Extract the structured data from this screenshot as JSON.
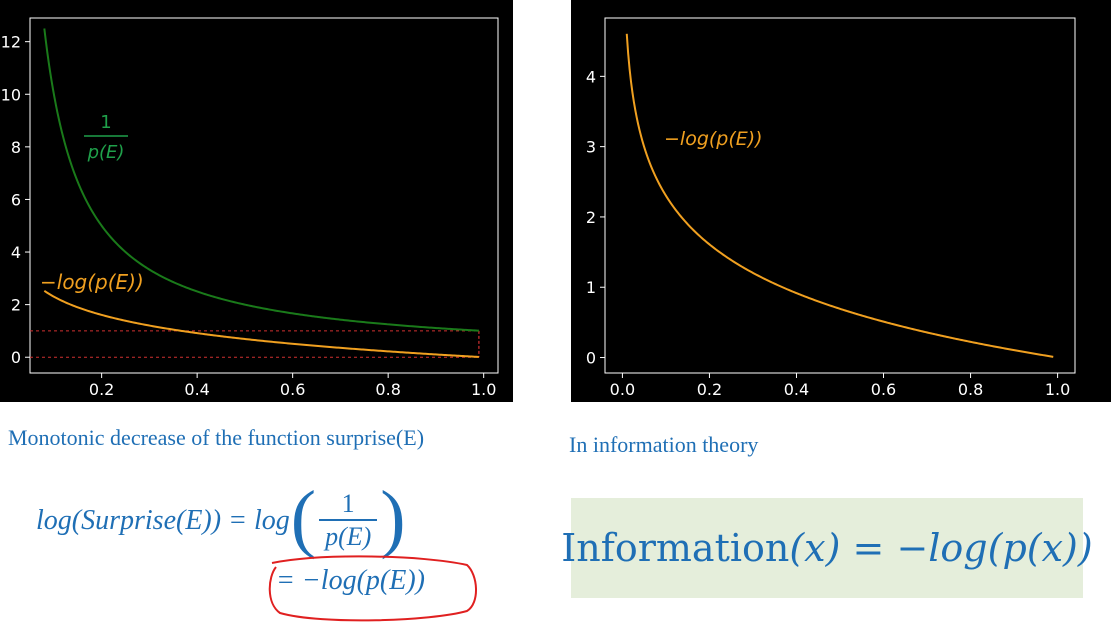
{
  "chart_data": [
    {
      "type": "line",
      "xlim": [
        0.05,
        1.03
      ],
      "ylim": [
        -0.6,
        12.9
      ],
      "xticks": [
        0.2,
        0.4,
        0.6,
        0.8,
        1.0
      ],
      "xtick_labels": [
        "0.2",
        "0.4",
        "0.6",
        "0.8",
        "1.0"
      ],
      "yticks": [
        0,
        2,
        4,
        6,
        8,
        10,
        12
      ],
      "ytick_labels": [
        "0",
        "2",
        "4",
        "6",
        "8",
        "10",
        "12"
      ],
      "grid": false,
      "series": [
        {
          "formula": "1/p",
          "color": "#1a7a1a",
          "x_range": [
            0.08,
            0.99
          ]
        },
        {
          "formula": "-ln(p)",
          "color": "#f0a020",
          "x_range": [
            0.08,
            0.99
          ]
        }
      ],
      "annotations": {
        "reciprocal_num": "1",
        "reciprocal_den": "p(E)",
        "neglog_label": "−log(p(E))"
      },
      "guide_lines": {
        "color": "#d03030",
        "y_values": [
          1,
          0
        ],
        "x_value": 0.99
      }
    },
    {
      "type": "line",
      "xlim": [
        -0.04,
        1.04
      ],
      "ylim": [
        -0.22,
        4.83
      ],
      "xticks": [
        0.0,
        0.2,
        0.4,
        0.6,
        0.8,
        1.0
      ],
      "xtick_labels": [
        "0.0",
        "0.2",
        "0.4",
        "0.6",
        "0.8",
        "1.0"
      ],
      "yticks": [
        0,
        1,
        2,
        3,
        4
      ],
      "ytick_labels": [
        "0",
        "1",
        "2",
        "3",
        "4"
      ],
      "grid": false,
      "series": [
        {
          "formula": "-ln(p)",
          "color": "#f0a020",
          "x_range": [
            0.01,
            0.99
          ]
        }
      ],
      "annotations": {
        "neglog_label": "−log(p(E))"
      }
    }
  ],
  "text": {
    "caption_left": "Monotonic decrease of the function surprise(E)",
    "caption_right": "In information theory",
    "formula1_lhs": "log(Surprise(E)) = log",
    "formula1_num": "1",
    "formula1_den": "p(E)",
    "formula2": "= −log(p(E))",
    "info_word": "Information",
    "info_rest": "(x) = −log(p(x))",
    "accent_blue": "#1f6fb5",
    "circle_color": "#e02020",
    "box_color": "#e5eedb"
  }
}
